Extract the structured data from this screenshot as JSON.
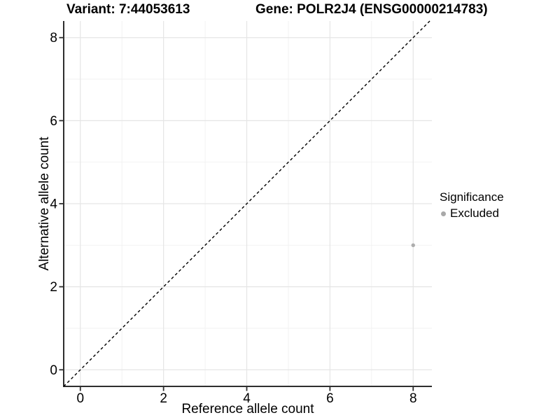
{
  "chart_data": {
    "type": "scatter",
    "title_variant": "Variant: 7:44053613",
    "title_gene": "Gene: POLR2J4 (ENSG00000214783)",
    "xlabel": "Reference allele count",
    "ylabel": "Alternative allele count",
    "xlim": [
      -0.4,
      8.45
    ],
    "ylim": [
      -0.4,
      8.4
    ],
    "xticks": [
      0,
      2,
      4,
      6,
      8
    ],
    "yticks": [
      0,
      2,
      4,
      6,
      8
    ],
    "xticks_minor": [
      1,
      3,
      5,
      7
    ],
    "yticks_minor": [
      1,
      3,
      5,
      7
    ],
    "grid": "on",
    "legend_position": "right",
    "abline": {
      "slope": 1,
      "intercept": 0,
      "style": "dashed",
      "color": "#000000"
    },
    "series": [
      {
        "name": "Excluded",
        "color": "#adadad",
        "points": [
          {
            "x": 8,
            "y": 3
          }
        ]
      }
    ],
    "legend": {
      "title": "Significance",
      "entries": [
        {
          "label": "Excluded",
          "color": "#a9a9a9"
        }
      ]
    },
    "colors": {
      "background": "#ffffff",
      "grid_major": "#e5e5e5",
      "grid_minor": "#f2f2f2",
      "axis": "#2e2e2e",
      "text": "#000000"
    }
  }
}
